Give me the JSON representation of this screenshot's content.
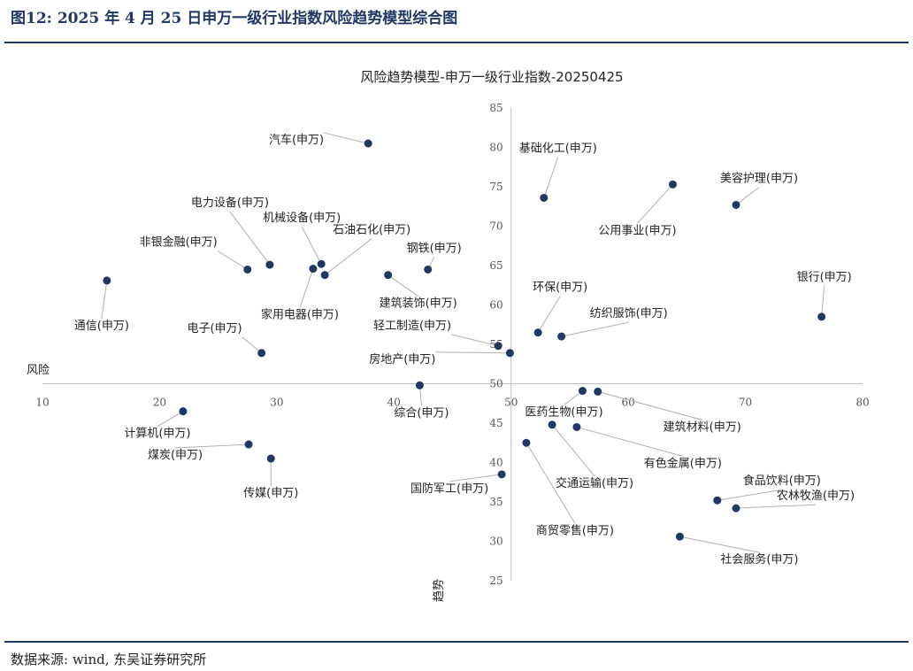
{
  "figure": {
    "title": "图12:  2025 年 4 月 25 日申万一级行业指数风险趋势模型综合图",
    "source": "数据来源:  wind,  东吴证券研究所"
  },
  "chart_data": {
    "type": "scatter",
    "title": "风险趋势模型-申万一级行业指数-20250425",
    "xlabel": "风险",
    "ylabel": "趋势",
    "xlim": [
      10,
      80
    ],
    "ylim": [
      25,
      85
    ],
    "x_cross": 50,
    "y_cross": 50,
    "xticks": [
      10,
      20,
      30,
      40,
      50,
      60,
      70,
      80
    ],
    "yticks": [
      25,
      30,
      35,
      40,
      45,
      50,
      55,
      60,
      65,
      70,
      75,
      80,
      85
    ],
    "grid": false,
    "legend": "none",
    "marker_color": "#1f3864",
    "points": [
      {
        "label": "汽车(申万)",
        "x": 37.8,
        "y": 80.5
      },
      {
        "label": "基础化工(申万)",
        "x": 52.8,
        "y": 73.6
      },
      {
        "label": "美容护理(申万)",
        "x": 69.2,
        "y": 72.7
      },
      {
        "label": "公用事业(申万)",
        "x": 63.8,
        "y": 75.3
      },
      {
        "label": "电力设备(申万)",
        "x": 29.4,
        "y": 65.1
      },
      {
        "label": "机械设备(申万)",
        "x": 33.8,
        "y": 65.2
      },
      {
        "label": "石油石化(申万)",
        "x": 34.1,
        "y": 63.8
      },
      {
        "label": "非银金融(申万)",
        "x": 27.5,
        "y": 64.5
      },
      {
        "label": "钢铁(申万)",
        "x": 42.9,
        "y": 64.5
      },
      {
        "label": "家用电器(申万)",
        "x": 33.1,
        "y": 64.6
      },
      {
        "label": "建筑装饰(申万)",
        "x": 39.5,
        "y": 63.8
      },
      {
        "label": "通信(申万)",
        "x": 15.5,
        "y": 63.1
      },
      {
        "label": "银行(申万)",
        "x": 76.5,
        "y": 58.5
      },
      {
        "label": "环保(申万)",
        "x": 52.3,
        "y": 56.5
      },
      {
        "label": "纺织服饰(申万)",
        "x": 54.3,
        "y": 56.0
      },
      {
        "label": "电子(申万)",
        "x": 28.7,
        "y": 53.9
      },
      {
        "label": "轻工制造(申万)",
        "x": 48.9,
        "y": 54.8
      },
      {
        "label": "房地产(申万)",
        "x": 49.9,
        "y": 53.9
      },
      {
        "label": "综合(申万)",
        "x": 42.2,
        "y": 49.8
      },
      {
        "label": "医药生物(申万)",
        "x": 56.1,
        "y": 49.1
      },
      {
        "label": "建筑材料(申万)",
        "x": 57.4,
        "y": 49.0
      },
      {
        "label": "计算机(申万)",
        "x": 22.0,
        "y": 46.5
      },
      {
        "label": "交通运输(申万)",
        "x": 53.5,
        "y": 44.8
      },
      {
        "label": "有色金属(申万)",
        "x": 55.6,
        "y": 44.5
      },
      {
        "label": "商贸零售(申万)",
        "x": 51.3,
        "y": 42.5
      },
      {
        "label": "煤炭(申万)",
        "x": 27.6,
        "y": 42.3
      },
      {
        "label": "传媒(申万)",
        "x": 29.5,
        "y": 40.5
      },
      {
        "label": "国防军工(申万)",
        "x": 49.2,
        "y": 38.5
      },
      {
        "label": "食品饮料(申万)",
        "x": 67.6,
        "y": 35.2
      },
      {
        "label": "农林牧渔(申万)",
        "x": 69.2,
        "y": 34.2
      },
      {
        "label": "社会服务(申万)",
        "x": 64.4,
        "y": 30.6
      }
    ]
  }
}
